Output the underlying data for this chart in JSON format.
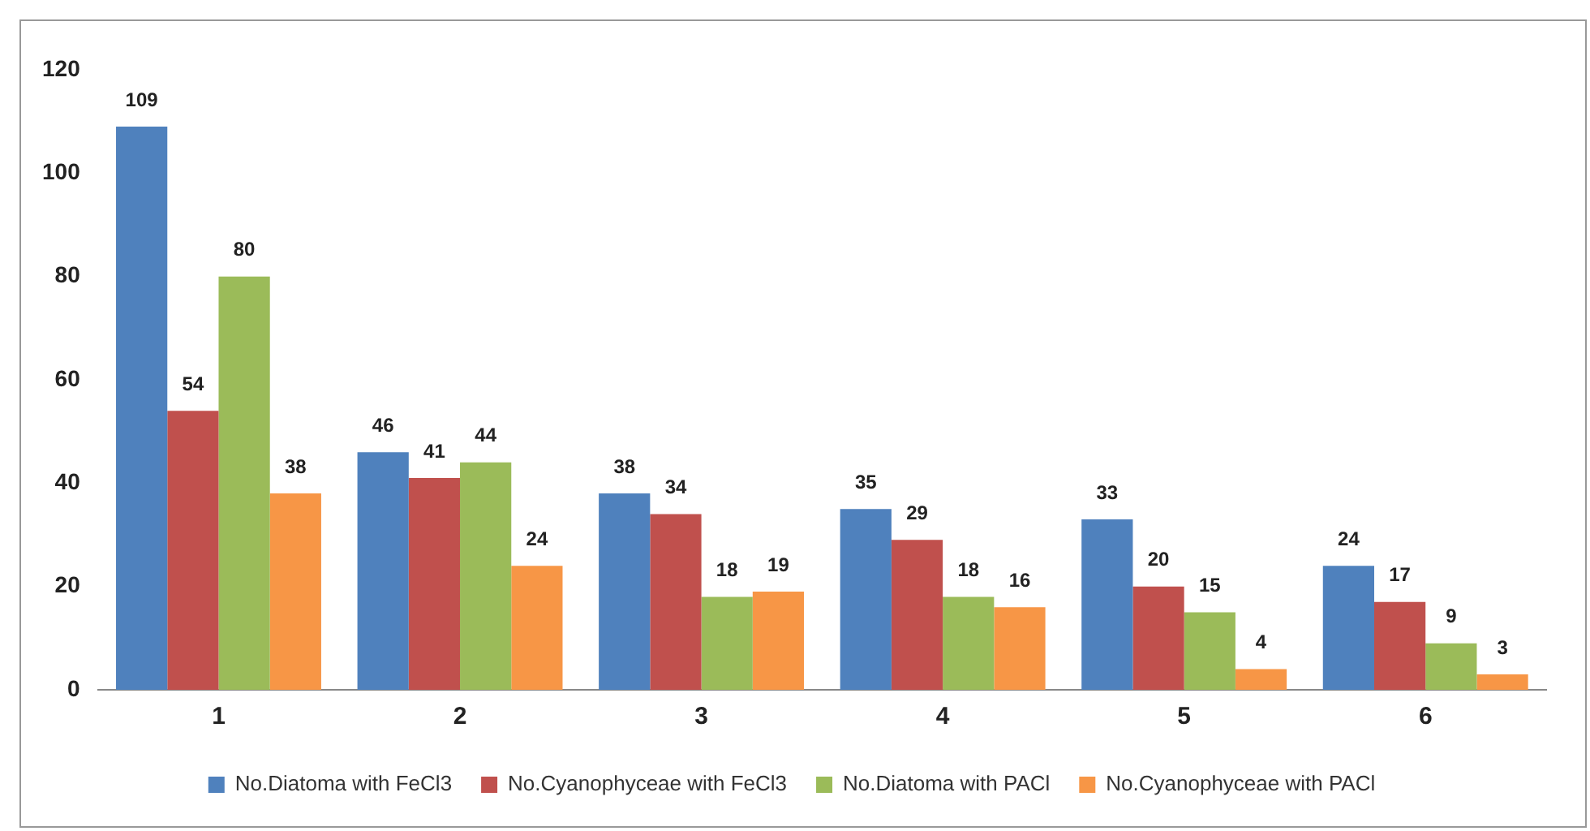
{
  "chart_data": {
    "type": "bar",
    "categories": [
      "1",
      "2",
      "3",
      "4",
      "5",
      "6"
    ],
    "series": [
      {
        "name": "No.Diatoma with FeCl3",
        "color": "#4f81bd",
        "values": [
          109,
          46,
          38,
          35,
          33,
          24
        ]
      },
      {
        "name": "No.Cyanophyceae with FeCl3",
        "color": "#c0504d",
        "values": [
          54,
          41,
          34,
          29,
          20,
          17
        ]
      },
      {
        "name": "No.Diatoma with PACl",
        "color": "#9bbb59",
        "values": [
          80,
          44,
          18,
          18,
          15,
          9
        ]
      },
      {
        "name": "No.Cyanophyceae with PACl",
        "color": "#f79646",
        "values": [
          38,
          24,
          19,
          16,
          4,
          3
        ]
      }
    ],
    "ylim": [
      0,
      120
    ],
    "yticks": [
      0,
      20,
      40,
      60,
      80,
      100,
      120
    ],
    "grid": false,
    "legend": "bottom",
    "data_labels": true
  }
}
